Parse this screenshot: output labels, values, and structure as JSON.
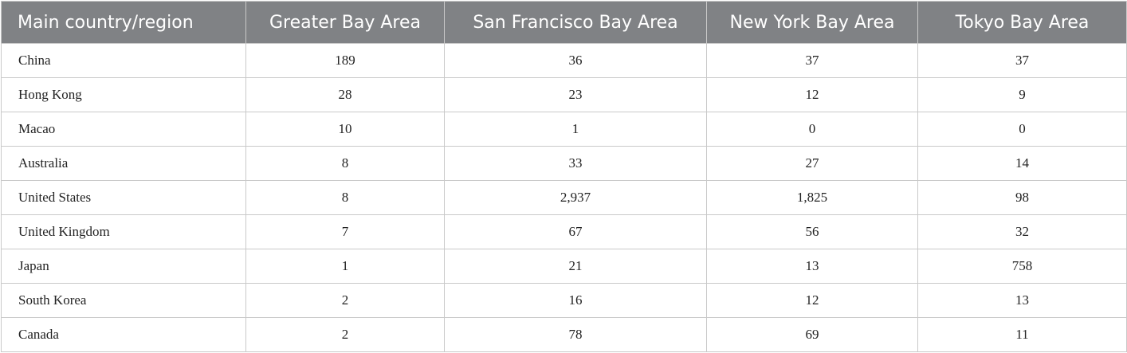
{
  "table": {
    "header": [
      "Main country/region",
      "Greater Bay Area",
      "San Francisco Bay Area",
      "New York Bay Area",
      "Tokyo Bay Area"
    ],
    "rows": [
      [
        "China",
        "189",
        "36",
        "37",
        "37"
      ],
      [
        "Hong Kong",
        "28",
        "23",
        "12",
        "9"
      ],
      [
        "Macao",
        "10",
        "1",
        "0",
        "0"
      ],
      [
        "Australia",
        "8",
        "33",
        "27",
        "14"
      ],
      [
        "United States",
        "8",
        "2,937",
        "1,825",
        "98"
      ],
      [
        "United Kingdom",
        "7",
        "67",
        "56",
        "32"
      ],
      [
        "Japan",
        "1",
        "21",
        "13",
        "758"
      ],
      [
        "South Korea",
        "2",
        "16",
        "12",
        "13"
      ],
      [
        "Canada",
        "2",
        "78",
        "69",
        "11"
      ]
    ]
  }
}
